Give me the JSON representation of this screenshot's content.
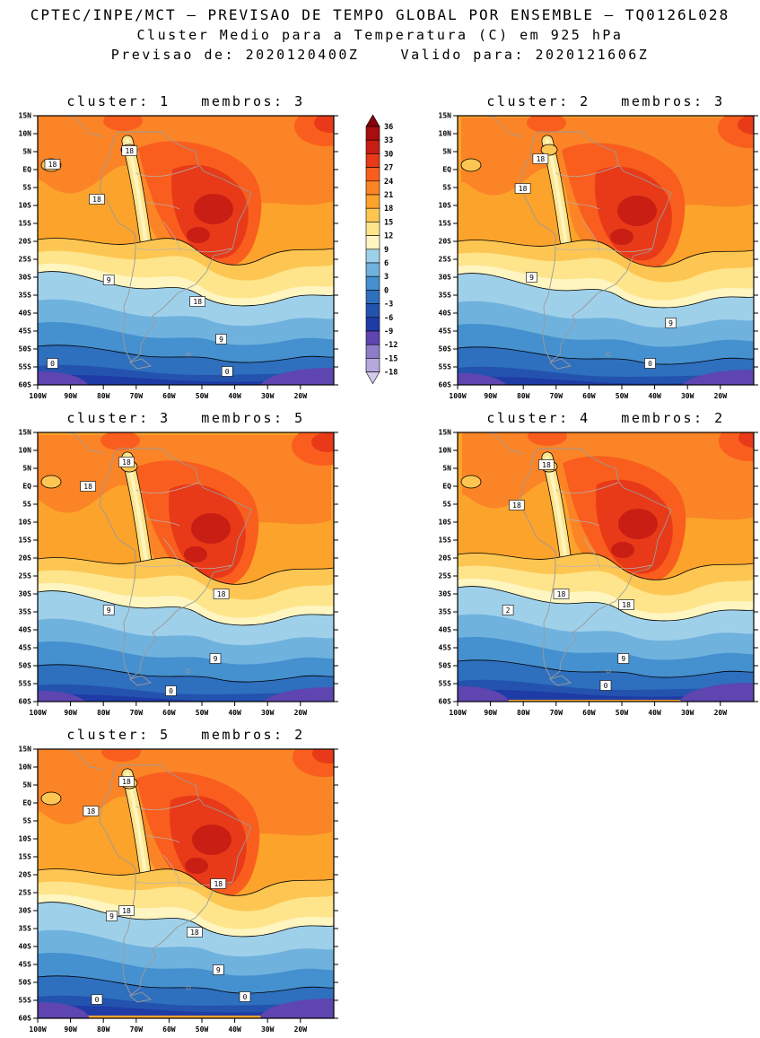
{
  "header": {
    "line1": "CPTEC/INPE/MCT — PREVISAO DE TEMPO GLOBAL POR ENSEMBLE — TQ0126L028",
    "line2": "Cluster Medio para a Temperatura (C) em 925 hPa",
    "line3": "Previsao de: 2020120400Z    Valido para: 2020121606Z"
  },
  "chart_data": {
    "type": "heatmap",
    "subtype": "filled-contour-temperature-maps",
    "title": "Cluster Medio para a Temperatura (C) em 925 hPa",
    "model": "TQ0126L028",
    "init_time": "2020120400Z",
    "valid_time": "2020121606Z",
    "region": "South America",
    "lat_ticks": [
      "15N",
      "10N",
      "5N",
      "EQ",
      "5S",
      "10S",
      "15S",
      "20S",
      "25S",
      "30S",
      "35S",
      "40S",
      "45S",
      "50S",
      "55S",
      "60S"
    ],
    "lon_ticks": [
      "100W",
      "90W",
      "80W",
      "70W",
      "60W",
      "50W",
      "40W",
      "30W",
      "20W"
    ],
    "colorbar": {
      "unit": "C",
      "levels": [
        36,
        33,
        30,
        27,
        24,
        21,
        18,
        15,
        12,
        9,
        6,
        3,
        0,
        -3,
        -6,
        -9,
        -12,
        -15,
        -18
      ],
      "colors": [
        "#860308",
        "#A80D10",
        "#C81E14",
        "#E83A18",
        "#F95E1E",
        "#FB8426",
        "#FCA32B",
        "#FDC653",
        "#FEE58C",
        "#FEF5C0",
        "#9FD0EA",
        "#6FB2DE",
        "#4590CE",
        "#2E6FBE",
        "#2353AE",
        "#1F3BA6",
        "#5E45B0",
        "#8E7CC8",
        "#B6A8DC",
        "#D5CCEC"
      ]
    },
    "labeled_contour_levels": [
      18,
      9,
      2,
      0
    ],
    "panels": [
      {
        "title": "cluster: 1   membros: 3",
        "cluster": 1,
        "membros": 3,
        "contour_labels": [
          {
            "v": "18",
            "x": 0.05,
            "y": 0.18
          },
          {
            "v": "18",
            "x": 0.31,
            "y": 0.13
          },
          {
            "v": "18",
            "x": 0.2,
            "y": 0.31
          },
          {
            "v": "18",
            "x": 0.54,
            "y": 0.69
          },
          {
            "v": "9",
            "x": 0.24,
            "y": 0.61
          },
          {
            "v": "9",
            "x": 0.62,
            "y": 0.83
          },
          {
            "v": "0",
            "x": 0.05,
            "y": 0.92
          },
          {
            "v": "0",
            "x": 0.64,
            "y": 0.95
          }
        ]
      },
      {
        "title": "cluster: 2   membros: 3",
        "cluster": 2,
        "membros": 3,
        "contour_labels": [
          {
            "v": "18",
            "x": 0.28,
            "y": 0.16
          },
          {
            "v": "18",
            "x": 0.22,
            "y": 0.27
          },
          {
            "v": "9",
            "x": 0.25,
            "y": 0.6
          },
          {
            "v": "9",
            "x": 0.72,
            "y": 0.77
          },
          {
            "v": "0",
            "x": 0.65,
            "y": 0.92
          }
        ]
      },
      {
        "title": "cluster: 3   membros: 5",
        "cluster": 3,
        "membros": 5,
        "contour_labels": [
          {
            "v": "18",
            "x": 0.3,
            "y": 0.11
          },
          {
            "v": "18",
            "x": 0.17,
            "y": 0.2
          },
          {
            "v": "18",
            "x": 0.62,
            "y": 0.6
          },
          {
            "v": "9",
            "x": 0.24,
            "y": 0.66
          },
          {
            "v": "9",
            "x": 0.6,
            "y": 0.84
          },
          {
            "v": "0",
            "x": 0.45,
            "y": 0.96
          }
        ]
      },
      {
        "title": "cluster: 4   membros: 2",
        "cluster": 4,
        "membros": 2,
        "contour_labels": [
          {
            "v": "18",
            "x": 0.3,
            "y": 0.12
          },
          {
            "v": "18",
            "x": 0.2,
            "y": 0.27
          },
          {
            "v": "18",
            "x": 0.35,
            "y": 0.6
          },
          {
            "v": "18",
            "x": 0.57,
            "y": 0.64
          },
          {
            "v": "2",
            "x": 0.17,
            "y": 0.66
          },
          {
            "v": "9",
            "x": 0.56,
            "y": 0.84
          },
          {
            "v": "0",
            "x": 0.5,
            "y": 0.94
          }
        ]
      },
      {
        "title": "cluster: 5   membros: 2",
        "cluster": 5,
        "membros": 2,
        "contour_labels": [
          {
            "v": "18",
            "x": 0.3,
            "y": 0.12
          },
          {
            "v": "18",
            "x": 0.18,
            "y": 0.23
          },
          {
            "v": "18",
            "x": 0.61,
            "y": 0.5
          },
          {
            "v": "18",
            "x": 0.3,
            "y": 0.6
          },
          {
            "v": "18",
            "x": 0.53,
            "y": 0.68
          },
          {
            "v": "9",
            "x": 0.25,
            "y": 0.62
          },
          {
            "v": "9",
            "x": 0.61,
            "y": 0.82
          },
          {
            "v": "0",
            "x": 0.2,
            "y": 0.93
          },
          {
            "v": "0",
            "x": 0.7,
            "y": 0.92
          }
        ]
      }
    ]
  }
}
